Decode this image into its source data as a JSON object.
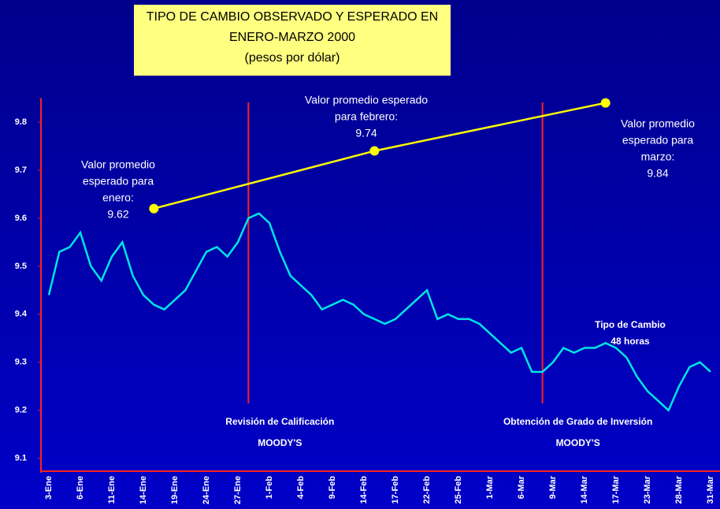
{
  "chart_data": {
    "type": "line",
    "title_lines": [
      "TIPO DE CAMBIO OBSERVADO Y ESPERADO EN",
      "ENERO-MARZO 2000",
      "(pesos por dólar)"
    ],
    "categories": [
      "3-Ene",
      null,
      null,
      "6-Ene",
      null,
      null,
      "11-Ene",
      null,
      null,
      "14-Ene",
      null,
      null,
      "19-Ene",
      null,
      null,
      "24-Ene",
      null,
      null,
      "27-Ene",
      null,
      null,
      "1-Feb",
      null,
      null,
      "4-Feb",
      null,
      null,
      "9-Feb",
      null,
      null,
      "14-Feb",
      null,
      null,
      "17-Feb",
      null,
      null,
      "22-Feb",
      null,
      null,
      "25-Feb",
      null,
      null,
      "1-Mar",
      null,
      null,
      "6-Mar",
      null,
      null,
      "9-Mar",
      null,
      null,
      "14-Mar",
      null,
      null,
      "17-Mar",
      null,
      null,
      "23-Mar",
      null,
      null,
      "28-Mar",
      null,
      null,
      "31-Mar"
    ],
    "series": [
      {
        "color": "#00e6e6",
        "values": [
          9.44,
          9.53,
          9.54,
          9.57,
          9.5,
          9.47,
          9.52,
          9.55,
          9.48,
          9.44,
          9.42,
          9.41,
          9.43,
          9.45,
          9.49,
          9.53,
          9.54,
          9.52,
          9.55,
          9.6,
          9.61,
          9.59,
          9.53,
          9.48,
          9.46,
          9.44,
          9.41,
          9.42,
          9.43,
          9.42,
          9.4,
          9.39,
          9.38,
          9.39,
          9.41,
          9.43,
          9.45,
          9.39,
          9.4,
          9.39,
          9.39,
          9.38,
          9.36,
          9.34,
          9.32,
          9.33,
          9.28,
          9.28,
          9.3,
          9.33,
          9.32,
          9.33,
          9.33,
          9.34,
          9.33,
          9.31,
          9.27,
          9.24,
          9.22,
          9.2,
          9.25,
          9.29,
          9.3,
          9.28
        ]
      },
      {
        "color": "#ffff00",
        "x": [
          10,
          31,
          53
        ],
        "values": [
          9.62,
          9.74,
          9.84
        ]
      }
    ],
    "annotations": [
      {
        "lines": [
          "Valor promedio",
          "esperado para",
          "enero:"
        ]
      },
      {
        "lines": [
          "Valor promedio esperado",
          "para febrero:"
        ]
      },
      {
        "lines": [
          "Valor promedio",
          "esperado para",
          "marzo:"
        ]
      },
      {
        "lines": [
          "Tipo de Cambio",
          "48 horas"
        ]
      }
    ],
    "events": [
      {
        "index": 19,
        "lines": [
          "Revisión de Calificación",
          "MOODY'S"
        ]
      },
      {
        "index": 47,
        "lines": [
          "Obtención de Grado de Inversión",
          "MOODY'S"
        ]
      }
    ],
    "ylim": [
      9.07,
      9.85
    ],
    "yticks": [
      9.1,
      9.2,
      9.3,
      9.4,
      9.5,
      9.6,
      9.7,
      9.8
    ]
  }
}
